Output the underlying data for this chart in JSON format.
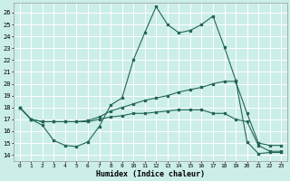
{
  "xlabel": "Humidex (Indice chaleur)",
  "xlim": [
    -0.5,
    23.5
  ],
  "ylim": [
    13.5,
    26.8
  ],
  "yticks": [
    14,
    15,
    16,
    17,
    18,
    19,
    20,
    21,
    22,
    23,
    24,
    25,
    26
  ],
  "xticks": [
    0,
    1,
    2,
    3,
    4,
    5,
    6,
    7,
    8,
    9,
    10,
    11,
    12,
    13,
    14,
    15,
    16,
    17,
    18,
    19,
    20,
    21,
    22,
    23
  ],
  "bg_color": "#cceee8",
  "line_color": "#226655",
  "grid_color": "#ffffff",
  "line1_y": [
    18.0,
    17.0,
    16.5,
    15.2,
    14.8,
    14.7,
    15.1,
    16.4,
    18.2,
    18.8,
    22.0,
    24.3,
    26.5,
    25.0,
    24.3,
    24.5,
    25.0,
    25.7,
    23.1,
    20.3,
    15.1,
    14.1,
    14.2,
    14.2
  ],
  "line2_y": [
    18.0,
    17.0,
    16.8,
    16.8,
    16.8,
    16.8,
    16.9,
    17.2,
    17.7,
    18.0,
    18.3,
    18.6,
    18.8,
    19.0,
    19.3,
    19.5,
    19.7,
    20.0,
    20.2,
    20.2,
    17.5,
    15.0,
    14.8,
    14.8
  ],
  "line3_y": [
    18.0,
    17.0,
    16.8,
    16.8,
    16.8,
    16.8,
    16.8,
    17.0,
    17.2,
    17.3,
    17.5,
    17.5,
    17.6,
    17.7,
    17.8,
    17.8,
    17.8,
    17.5,
    17.5,
    17.0,
    16.8,
    14.8,
    14.3,
    14.3
  ]
}
